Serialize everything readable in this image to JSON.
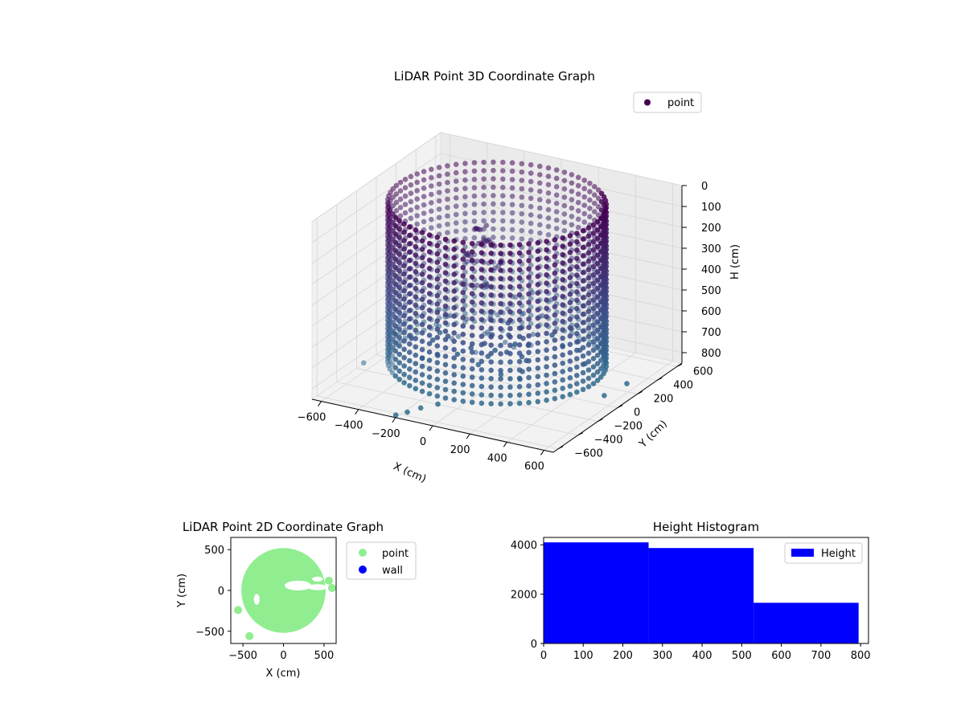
{
  "chart_data": [
    {
      "type": "scatter",
      "projection": "3d",
      "title": "LiDAR Point 3D Coordinate Graph",
      "xlabel": "X (cm)",
      "ylabel": "Y (cm)",
      "zlabel": "H (cm)",
      "xlim": [
        -650,
        650
      ],
      "ylim": [
        -650,
        650
      ],
      "zlim": [
        0,
        850
      ],
      "z_inverted": true,
      "xticks": [
        -600,
        -400,
        -200,
        0,
        200,
        400,
        600
      ],
      "yticks": [
        -600,
        -400,
        -200,
        0,
        200,
        400,
        600
      ],
      "zticks": [
        0,
        100,
        200,
        300,
        400,
        500,
        600,
        700,
        800
      ],
      "grid": true,
      "legend": {
        "position": "upper-right",
        "entries": [
          {
            "label": "point",
            "color": "#440154"
          }
        ]
      },
      "colormap": "viridis",
      "structure": {
        "wall_radius": 520,
        "wall_height_range": [
          0,
          780
        ],
        "wall_arc_degrees": 360,
        "column_count": 72,
        "inner_cluster": {
          "x": -120,
          "y": 80,
          "height_range": [
            150,
            450
          ]
        },
        "outliers": [
          {
            "x": -80,
            "y": -620,
            "h": 790
          },
          {
            "x": -110,
            "y": -700,
            "h": 790
          },
          {
            "x": -140,
            "y": -760,
            "h": 790
          },
          {
            "x": -20,
            "y": -560,
            "h": 780
          },
          {
            "x": -620,
            "y": 120,
            "h": 780
          },
          {
            "x": -580,
            "y": -260,
            "h": 790
          },
          {
            "x": 620,
            "y": 150,
            "h": 790
          },
          {
            "x": 610,
            "y": -60,
            "h": 780
          }
        ]
      }
    },
    {
      "type": "scatter",
      "title": "LiDAR Point 2D Coordinate Graph",
      "xlabel": "X (cm)",
      "ylabel": "Y (cm)",
      "xlim": [
        -650,
        650
      ],
      "ylim": [
        -650,
        650
      ],
      "xticks": [
        -500,
        0,
        500
      ],
      "yticks": [
        -500,
        0,
        500
      ],
      "grid": false,
      "legend": {
        "position": "outside-right",
        "entries": [
          {
            "label": "point",
            "color": "#90ee90"
          },
          {
            "label": "wall",
            "color": "#0000ff"
          }
        ]
      },
      "series": [
        {
          "name": "point",
          "color": "#90ee90",
          "shape": "filled-disc",
          "radius": 520
        },
        {
          "name": "wall",
          "color": "#0000ff",
          "count": 0
        }
      ]
    },
    {
      "type": "bar",
      "subtype": "histogram",
      "title": "Height Histogram",
      "xlabel": "",
      "ylabel": "",
      "xlim": [
        0,
        820
      ],
      "ylim": [
        0,
        4300
      ],
      "xticks": [
        0,
        100,
        200,
        300,
        400,
        500,
        600,
        700,
        800
      ],
      "yticks": [
        0,
        2000,
        4000
      ],
      "bins": [
        {
          "from": 0,
          "to": 265,
          "count": 4100
        },
        {
          "from": 265,
          "to": 530,
          "count": 3870
        },
        {
          "from": 530,
          "to": 795,
          "count": 1650
        }
      ],
      "color": "#0000ff",
      "legend": {
        "position": "upper-right",
        "entries": [
          {
            "label": "Height",
            "color": "#0000ff"
          }
        ]
      }
    }
  ]
}
